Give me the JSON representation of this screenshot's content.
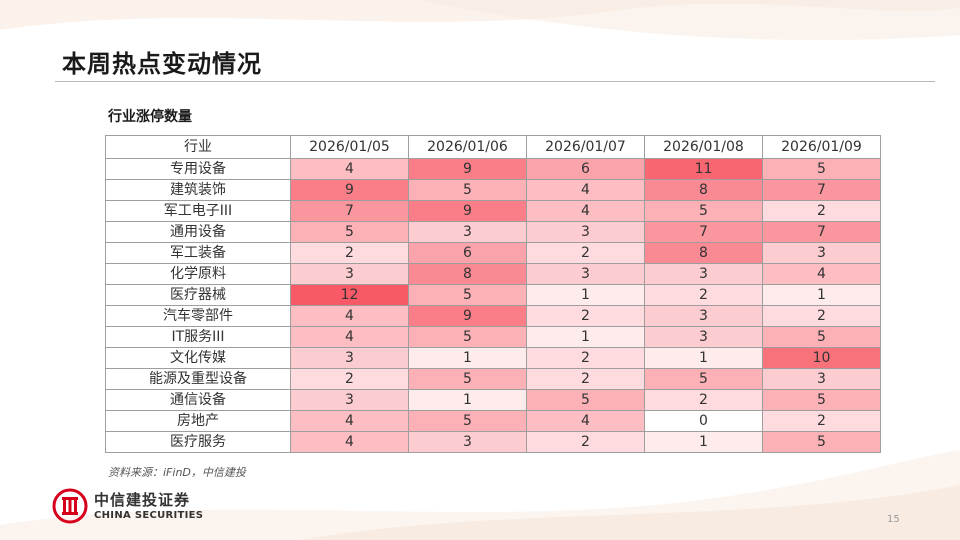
{
  "title": "本周热点变动情况",
  "subtitle": "行业涨停数量",
  "table": {
    "header": [
      "行业",
      "2026/01/05",
      "2026/01/06",
      "2026/01/07",
      "2026/01/08",
      "2026/01/09"
    ],
    "rows": [
      {
        "industry": "专用设备",
        "values": [
          4,
          9,
          6,
          11,
          5
        ]
      },
      {
        "industry": "建筑装饰",
        "values": [
          9,
          5,
          4,
          8,
          7
        ]
      },
      {
        "industry": "军工电子III",
        "values": [
          7,
          9,
          4,
          5,
          2
        ]
      },
      {
        "industry": "通用设备",
        "values": [
          5,
          3,
          3,
          7,
          7
        ]
      },
      {
        "industry": "军工装备",
        "values": [
          2,
          6,
          2,
          8,
          3
        ]
      },
      {
        "industry": "化学原料",
        "values": [
          3,
          8,
          3,
          3,
          4
        ]
      },
      {
        "industry": "医疗器械",
        "values": [
          12,
          5,
          1,
          2,
          1
        ]
      },
      {
        "industry": "汽车零部件",
        "values": [
          4,
          9,
          2,
          3,
          2
        ]
      },
      {
        "industry": "IT服务III",
        "values": [
          4,
          5,
          1,
          3,
          5
        ]
      },
      {
        "industry": "文化传媒",
        "values": [
          3,
          1,
          2,
          1,
          10
        ]
      },
      {
        "industry": "能源及重型设备",
        "values": [
          2,
          5,
          2,
          5,
          3
        ]
      },
      {
        "industry": "通信设备",
        "values": [
          3,
          1,
          5,
          2,
          5
        ]
      },
      {
        "industry": "房地产",
        "values": [
          4,
          5,
          4,
          0,
          2
        ]
      },
      {
        "industry": "医疗服务",
        "values": [
          4,
          3,
          2,
          1,
          5
        ]
      }
    ]
  },
  "heatmap": {
    "low_color": "#ffffff",
    "high_color": "#f75a66"
  },
  "source": "资料来源：iFinD，中信建投",
  "logo": {
    "cn": "中信建投证券",
    "en": "CHINA SECURITIES",
    "icon": "citic-logo-icon",
    "color": "#d7001b"
  },
  "page_number": "15"
}
